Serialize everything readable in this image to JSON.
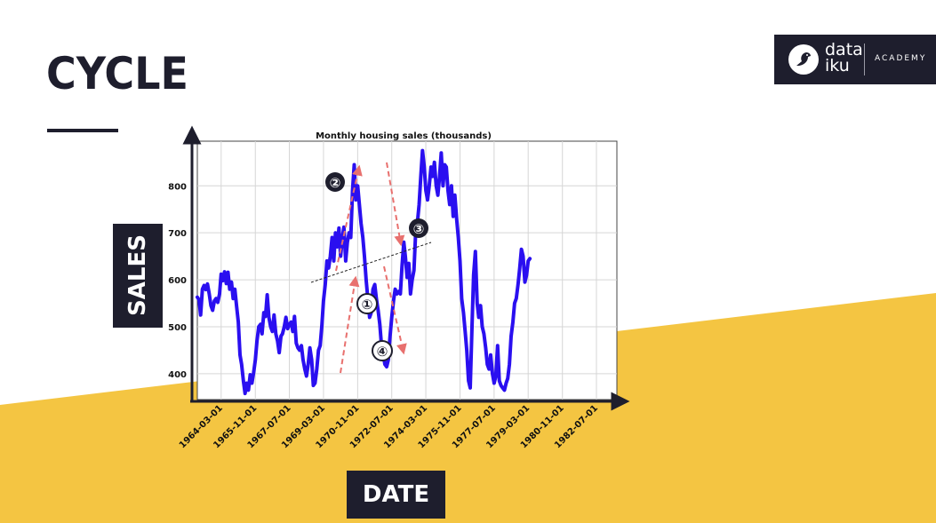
{
  "slide": {
    "title": "CYCLE"
  },
  "logo": {
    "brand_line1": "data",
    "brand_line2": "iku",
    "academy": "ACADEMY"
  },
  "labels": {
    "y_box": "SALES",
    "x_box": "DATE"
  },
  "colors": {
    "dark": "#1e1e2d",
    "band": "#f4c542",
    "series": "#2a0ff0",
    "arrow": "#e8706e"
  },
  "chart_data": {
    "type": "line",
    "title": "Monthly housing sales (thousands)",
    "xlabel": "",
    "ylabel": "",
    "ylim": [
      345,
      895
    ],
    "y_ticks": [
      400,
      500,
      600,
      700,
      800
    ],
    "x_tick_labels": [
      "1964-03-01",
      "1965-11-01",
      "1967-07-01",
      "1969-03-01",
      "1970-11-01",
      "1972-07-01",
      "1974-03-01",
      "1975-11-01",
      "1977-07-01",
      "1979-03-01",
      "1980-11-01",
      "1982-07-01"
    ],
    "x_range": [
      "1963-01-01",
      "1983-07-01"
    ],
    "grid": true,
    "series": [
      {
        "points": [
          [
            "1963-01-01",
            563
          ],
          [
            "1963-02-01",
            557
          ],
          [
            "1963-03-01",
            525
          ],
          [
            "1963-04-01",
            580
          ],
          [
            "1963-05-01",
            588
          ],
          [
            "1963-06-01",
            579
          ],
          [
            "1963-07-01",
            591
          ],
          [
            "1963-08-01",
            570
          ],
          [
            "1963-09-01",
            545
          ],
          [
            "1963-10-01",
            535
          ],
          [
            "1963-11-01",
            555
          ],
          [
            "1963-12-01",
            560
          ],
          [
            "1964-01-01",
            552
          ],
          [
            "1964-02-01",
            570
          ],
          [
            "1964-03-01",
            612
          ],
          [
            "1964-04-01",
            598
          ],
          [
            "1964-05-01",
            617
          ],
          [
            "1964-06-01",
            592
          ],
          [
            "1964-07-01",
            616
          ],
          [
            "1964-08-01",
            580
          ],
          [
            "1964-09-01",
            595
          ],
          [
            "1964-10-01",
            560
          ],
          [
            "1964-11-01",
            580
          ],
          [
            "1964-12-01",
            545
          ],
          [
            "1965-01-01",
            510
          ],
          [
            "1965-02-01",
            440
          ],
          [
            "1965-03-01",
            420
          ],
          [
            "1965-04-01",
            385
          ],
          [
            "1965-05-01",
            358
          ],
          [
            "1965-06-01",
            380
          ],
          [
            "1965-07-01",
            365
          ],
          [
            "1965-08-01",
            398
          ],
          [
            "1965-09-01",
            380
          ],
          [
            "1965-10-01",
            402
          ],
          [
            "1965-11-01",
            430
          ],
          [
            "1965-12-01",
            470
          ],
          [
            "1966-01-01",
            500
          ],
          [
            "1966-02-01",
            505
          ],
          [
            "1966-03-01",
            485
          ],
          [
            "1966-04-01",
            530
          ],
          [
            "1966-05-01",
            522
          ],
          [
            "1966-06-01",
            568
          ],
          [
            "1966-07-01",
            520
          ],
          [
            "1966-08-01",
            500
          ],
          [
            "1966-09-01",
            490
          ],
          [
            "1966-10-01",
            525
          ],
          [
            "1966-11-01",
            485
          ],
          [
            "1966-12-01",
            470
          ],
          [
            "1967-01-01",
            445
          ],
          [
            "1967-02-01",
            480
          ],
          [
            "1967-03-01",
            485
          ],
          [
            "1967-04-01",
            500
          ],
          [
            "1967-05-01",
            520
          ],
          [
            "1967-06-01",
            496
          ],
          [
            "1967-07-01",
            505
          ],
          [
            "1967-08-01",
            510
          ],
          [
            "1967-09-01",
            490
          ],
          [
            "1967-10-01",
            522
          ],
          [
            "1967-11-01",
            465
          ],
          [
            "1967-12-01",
            455
          ],
          [
            "1968-01-01",
            450
          ],
          [
            "1968-02-01",
            460
          ],
          [
            "1968-03-01",
            430
          ],
          [
            "1968-04-01",
            410
          ],
          [
            "1968-05-01",
            395
          ],
          [
            "1968-06-01",
            420
          ],
          [
            "1968-07-01",
            455
          ],
          [
            "1968-08-01",
            430
          ],
          [
            "1968-09-01",
            375
          ],
          [
            "1968-10-01",
            380
          ],
          [
            "1968-11-01",
            410
          ],
          [
            "1968-12-01",
            450
          ],
          [
            "1969-01-01",
            460
          ],
          [
            "1969-02-01",
            505
          ],
          [
            "1969-03-01",
            555
          ],
          [
            "1969-04-01",
            590
          ],
          [
            "1969-05-01",
            640
          ],
          [
            "1969-06-01",
            625
          ],
          [
            "1969-07-01",
            650
          ],
          [
            "1969-08-01",
            690
          ],
          [
            "1969-09-01",
            640
          ],
          [
            "1969-10-01",
            700
          ],
          [
            "1969-11-01",
            670
          ],
          [
            "1969-12-01",
            710
          ],
          [
            "1970-01-01",
            650
          ],
          [
            "1970-02-01",
            690
          ],
          [
            "1970-03-01",
            712
          ],
          [
            "1970-04-01",
            640
          ],
          [
            "1970-05-01",
            680
          ],
          [
            "1970-06-01",
            700
          ],
          [
            "1970-07-01",
            690
          ],
          [
            "1970-08-01",
            790
          ],
          [
            "1970-09-01",
            845
          ],
          [
            "1970-10-01",
            770
          ],
          [
            "1970-11-01",
            800
          ],
          [
            "1970-12-01",
            760
          ],
          [
            "1971-01-01",
            720
          ],
          [
            "1971-02-01",
            690
          ],
          [
            "1971-03-01",
            650
          ],
          [
            "1971-04-01",
            600
          ],
          [
            "1971-05-01",
            560
          ],
          [
            "1971-06-01",
            520
          ],
          [
            "1971-07-01",
            530
          ],
          [
            "1971-08-01",
            580
          ],
          [
            "1971-09-01",
            590
          ],
          [
            "1971-10-01",
            560
          ],
          [
            "1971-11-01",
            535
          ],
          [
            "1971-12-01",
            505
          ],
          [
            "1972-01-01",
            460
          ],
          [
            "1972-02-01",
            440
          ],
          [
            "1972-03-01",
            420
          ],
          [
            "1972-04-01",
            415
          ],
          [
            "1972-05-01",
            430
          ],
          [
            "1972-06-01",
            480
          ],
          [
            "1972-07-01",
            520
          ],
          [
            "1972-08-01",
            555
          ],
          [
            "1972-09-01",
            580
          ],
          [
            "1972-10-01",
            570
          ],
          [
            "1972-11-01",
            575
          ],
          [
            "1972-12-01",
            570
          ],
          [
            "1973-01-01",
            630
          ],
          [
            "1973-02-01",
            680
          ],
          [
            "1973-03-01",
            650
          ],
          [
            "1973-04-01",
            605
          ],
          [
            "1973-05-01",
            635
          ],
          [
            "1973-06-01",
            570
          ],
          [
            "1973-07-01",
            600
          ],
          [
            "1973-08-01",
            620
          ],
          [
            "1973-09-01",
            700
          ],
          [
            "1973-10-01",
            720
          ],
          [
            "1973-11-01",
            760
          ],
          [
            "1973-12-01",
            820
          ],
          [
            "1974-01-01",
            875
          ],
          [
            "1974-02-01",
            840
          ],
          [
            "1974-03-01",
            790
          ],
          [
            "1974-04-01",
            770
          ],
          [
            "1974-05-01",
            800
          ],
          [
            "1974-06-01",
            840
          ],
          [
            "1974-07-01",
            820
          ],
          [
            "1974-08-01",
            850
          ],
          [
            "1974-09-01",
            800
          ],
          [
            "1974-10-01",
            780
          ],
          [
            "1974-11-01",
            820
          ],
          [
            "1974-12-01",
            870
          ],
          [
            "1975-01-01",
            800
          ],
          [
            "1975-02-01",
            845
          ],
          [
            "1975-03-01",
            840
          ],
          [
            "1975-04-01",
            790
          ],
          [
            "1975-05-01",
            760
          ],
          [
            "1975-06-01",
            800
          ],
          [
            "1975-07-01",
            735
          ],
          [
            "1975-08-01",
            780
          ],
          [
            "1975-09-01",
            730
          ],
          [
            "1975-10-01",
            690
          ],
          [
            "1975-11-01",
            640
          ],
          [
            "1975-12-01",
            560
          ],
          [
            "1976-01-01",
            530
          ],
          [
            "1976-02-01",
            490
          ],
          [
            "1976-03-01",
            450
          ],
          [
            "1976-04-01",
            385
          ],
          [
            "1976-05-01",
            370
          ],
          [
            "1976-06-01",
            500
          ],
          [
            "1976-07-01",
            610
          ],
          [
            "1976-08-01",
            660
          ],
          [
            "1976-09-01",
            550
          ],
          [
            "1976-10-01",
            520
          ],
          [
            "1976-11-01",
            545
          ],
          [
            "1976-12-01",
            500
          ],
          [
            "1977-01-01",
            485
          ],
          [
            "1977-02-01",
            455
          ],
          [
            "1977-03-01",
            420
          ],
          [
            "1977-04-01",
            410
          ],
          [
            "1977-05-01",
            440
          ],
          [
            "1977-06-01",
            400
          ],
          [
            "1977-07-01",
            380
          ],
          [
            "1977-08-01",
            395
          ],
          [
            "1977-09-01",
            460
          ],
          [
            "1977-10-01",
            385
          ],
          [
            "1977-11-01",
            375
          ],
          [
            "1977-12-01",
            370
          ],
          [
            "1978-01-01",
            365
          ],
          [
            "1978-02-01",
            380
          ],
          [
            "1978-03-01",
            390
          ],
          [
            "1978-04-01",
            420
          ],
          [
            "1978-05-01",
            480
          ],
          [
            "1978-06-01",
            510
          ],
          [
            "1978-07-01",
            550
          ],
          [
            "1978-08-01",
            560
          ],
          [
            "1978-09-01",
            590
          ],
          [
            "1978-10-01",
            625
          ],
          [
            "1978-11-01",
            665
          ],
          [
            "1978-12-01",
            650
          ],
          [
            "1979-01-01",
            595
          ],
          [
            "1979-02-01",
            610
          ],
          [
            "1979-03-01",
            640
          ],
          [
            "1979-04-01",
            645
          ]
        ]
      }
    ],
    "annotations": [
      "①",
      "②",
      "③",
      "④"
    ]
  }
}
